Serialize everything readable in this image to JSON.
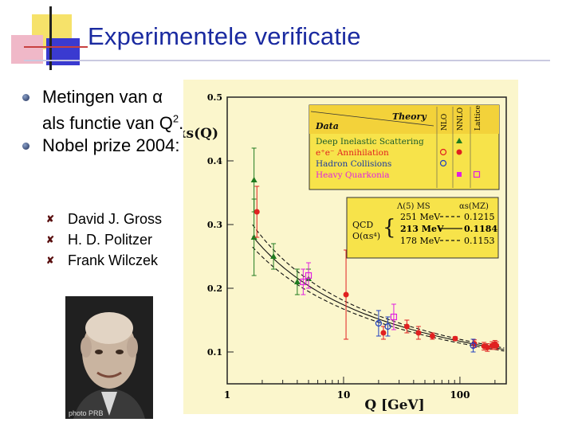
{
  "slide": {
    "title": "Experimentele verificatie",
    "bullets": [
      {
        "text_html": "Metingen van α als functie van Q<sup>2</sup>."
      },
      {
        "text": "Nobel prize 2004:"
      }
    ],
    "sub_bullets": [
      "David J. Gross",
      "H. D. Politzer",
      "Frank Wilczek"
    ],
    "photo_caption": "photo PRB",
    "colors": {
      "title": "#1a2aa0",
      "panel_bg": "#fbf6cc",
      "legend_bg": "#f7e34a"
    }
  },
  "chart_data": {
    "type": "scatter",
    "x_scale": "log",
    "xlabel": "Q [GeV]",
    "ylabel": "αs(Q)",
    "xlim": [
      1,
      250
    ],
    "ylim": [
      0.05,
      0.5
    ],
    "x_ticks": [
      "1",
      "10",
      "100"
    ],
    "y_ticks": [
      "0.1",
      "0.2",
      "0.3",
      "0.4",
      "0.5"
    ],
    "legend": {
      "header_left": "Data",
      "header_right": "Theory",
      "theory_cols": [
        "NLO",
        "NNLO",
        "Lattice"
      ],
      "entries": [
        "Deep Inelastic Scattering",
        "e⁺e⁻ Annihilation",
        "Hadron Collisions",
        "Heavy Quarkonia"
      ]
    },
    "qcd_box": {
      "label_left": "QCD",
      "label_left2": "O(αs⁴)",
      "col1_header": "Λ(5) MS",
      "col2_header": "αs(MZ)",
      "rows": [
        {
          "lambda": "251 MeV",
          "alpha": "0.1215",
          "style": "dashed"
        },
        {
          "lambda": "213 MeV",
          "alpha": "0.1184",
          "style": "solid"
        },
        {
          "lambda": "178 MeV",
          "alpha": "0.1153",
          "style": "dashed"
        }
      ]
    },
    "series": [
      {
        "name": "Deep Inelastic Scattering",
        "marker": "triangle",
        "color": "#1f7a1f",
        "points": [
          [
            1.7,
            0.37,
            0.05
          ],
          [
            1.7,
            0.28,
            0.06
          ],
          [
            2.5,
            0.25,
            0.02
          ],
          [
            4.0,
            0.21,
            0.02
          ],
          [
            5.0,
            0.215,
            0.015
          ]
        ]
      },
      {
        "name": "e⁺e⁻ Annihilation",
        "marker": "circle",
        "color": "#e02020",
        "points": [
          [
            1.8,
            0.32,
            0.04
          ],
          [
            10.5,
            0.19,
            0.07
          ],
          [
            22,
            0.13,
            0.01
          ],
          [
            35,
            0.14,
            0.01
          ],
          [
            44,
            0.13,
            0.01
          ],
          [
            58,
            0.125,
            0.005
          ],
          [
            91,
            0.121,
            0.003
          ],
          [
            133,
            0.113,
            0.006
          ],
          [
            161,
            0.109,
            0.006
          ],
          [
            172,
            0.107,
            0.006
          ],
          [
            189,
            0.11,
            0.006
          ],
          [
            200,
            0.112,
            0.006
          ],
          [
            206,
            0.11,
            0.006
          ]
        ]
      },
      {
        "name": "Hadron Collisions",
        "marker": "open-circle",
        "color": "#2040c0",
        "points": [
          [
            20,
            0.145,
            0.02
          ],
          [
            24,
            0.14,
            0.015
          ],
          [
            130,
            0.11,
            0.01
          ]
        ]
      },
      {
        "name": "Heavy Quarkonia",
        "marker": "square",
        "color": "#e020e0",
        "points": [
          [
            4.5,
            0.21,
            0.02
          ],
          [
            5.0,
            0.22,
            0.02
          ],
          [
            27,
            0.155,
            0.02
          ]
        ]
      }
    ],
    "curves": [
      {
        "alpha_mz": 0.1215,
        "style": "dashed"
      },
      {
        "alpha_mz": 0.1184,
        "style": "solid"
      },
      {
        "alpha_mz": 0.1153,
        "style": "dashed"
      }
    ]
  }
}
